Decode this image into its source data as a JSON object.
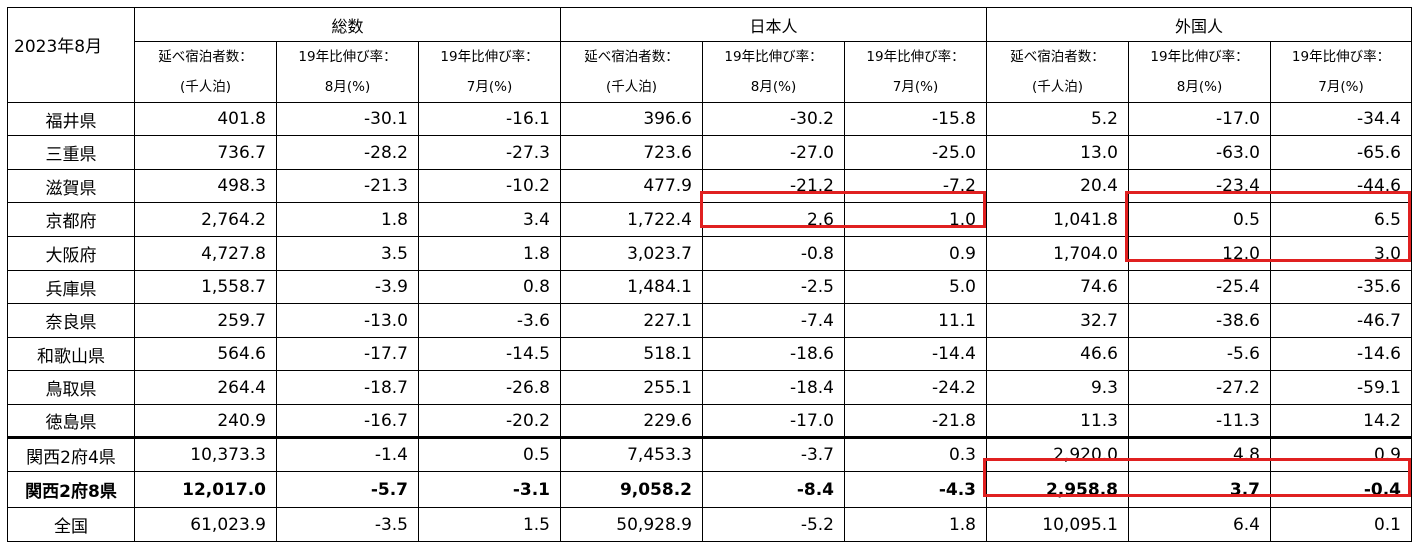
{
  "corner_label": "2023年8月",
  "groups": [
    "総数",
    "日本人",
    "外国人"
  ],
  "subheaders": [
    {
      "line1": "延べ宿泊者数：",
      "line2": "(千人泊)"
    },
    {
      "line1": "19年比伸び率：",
      "line2": "8月(%)"
    },
    {
      "line1": "19年比伸び率：",
      "line2": "7月(%)"
    }
  ],
  "rows": [
    {
      "label": "福井県",
      "values": [
        "401.8",
        "-30.1",
        "-16.1",
        "396.6",
        "-30.2",
        "-15.8",
        "5.2",
        "-17.0",
        "-34.4"
      ]
    },
    {
      "label": "三重県",
      "values": [
        "736.7",
        "-28.2",
        "-27.3",
        "723.6",
        "-27.0",
        "-25.0",
        "13.0",
        "-63.0",
        "-65.6"
      ]
    },
    {
      "label": "滋賀県",
      "values": [
        "498.3",
        "-21.3",
        "-10.2",
        "477.9",
        "-21.2",
        "-7.2",
        "20.4",
        "-23.4",
        "-44.6"
      ]
    },
    {
      "label": "京都府",
      "values": [
        "2,764.2",
        "1.8",
        "3.4",
        "1,722.4",
        "2.6",
        "1.0",
        "1,041.8",
        "0.5",
        "6.5"
      ]
    },
    {
      "label": "大阪府",
      "values": [
        "4,727.8",
        "3.5",
        "1.8",
        "3,023.7",
        "-0.8",
        "0.9",
        "1,704.0",
        "12.0",
        "3.0"
      ]
    },
    {
      "label": "兵庫県",
      "values": [
        "1,558.7",
        "-3.9",
        "0.8",
        "1,484.1",
        "-2.5",
        "5.0",
        "74.6",
        "-25.4",
        "-35.6"
      ]
    },
    {
      "label": "奈良県",
      "values": [
        "259.7",
        "-13.0",
        "-3.6",
        "227.1",
        "-7.4",
        "11.1",
        "32.7",
        "-38.6",
        "-46.7"
      ]
    },
    {
      "label": "和歌山県",
      "values": [
        "564.6",
        "-17.7",
        "-14.5",
        "518.1",
        "-18.6",
        "-14.4",
        "46.6",
        "-5.6",
        "-14.6"
      ]
    },
    {
      "label": "鳥取県",
      "values": [
        "264.4",
        "-18.7",
        "-26.8",
        "255.1",
        "-18.4",
        "-24.2",
        "9.3",
        "-27.2",
        "-59.1"
      ]
    },
    {
      "label": "徳島県",
      "values": [
        "240.9",
        "-16.7",
        "-20.2",
        "229.6",
        "-17.0",
        "-21.8",
        "11.3",
        "-11.3",
        "14.2"
      ]
    },
    {
      "label": "関西2府4県",
      "values": [
        "10,373.3",
        "-1.4",
        "0.5",
        "7,453.3",
        "-3.7",
        "0.3",
        "2,920.0",
        "4.8",
        "0.9"
      ]
    },
    {
      "label": "関西2府8県",
      "values": [
        "12,017.0",
        "-5.7",
        "-3.1",
        "9,058.2",
        "-8.4",
        "-4.3",
        "2,958.8",
        "3.7",
        "-0.4"
      ]
    },
    {
      "label": "全国",
      "values": [
        "61,023.9",
        "-3.5",
        "1.5",
        "50,928.9",
        "-5.2",
        "1.8",
        "10,095.1",
        "6.4",
        "0.1"
      ]
    }
  ],
  "highlight_color": "#e02020"
}
